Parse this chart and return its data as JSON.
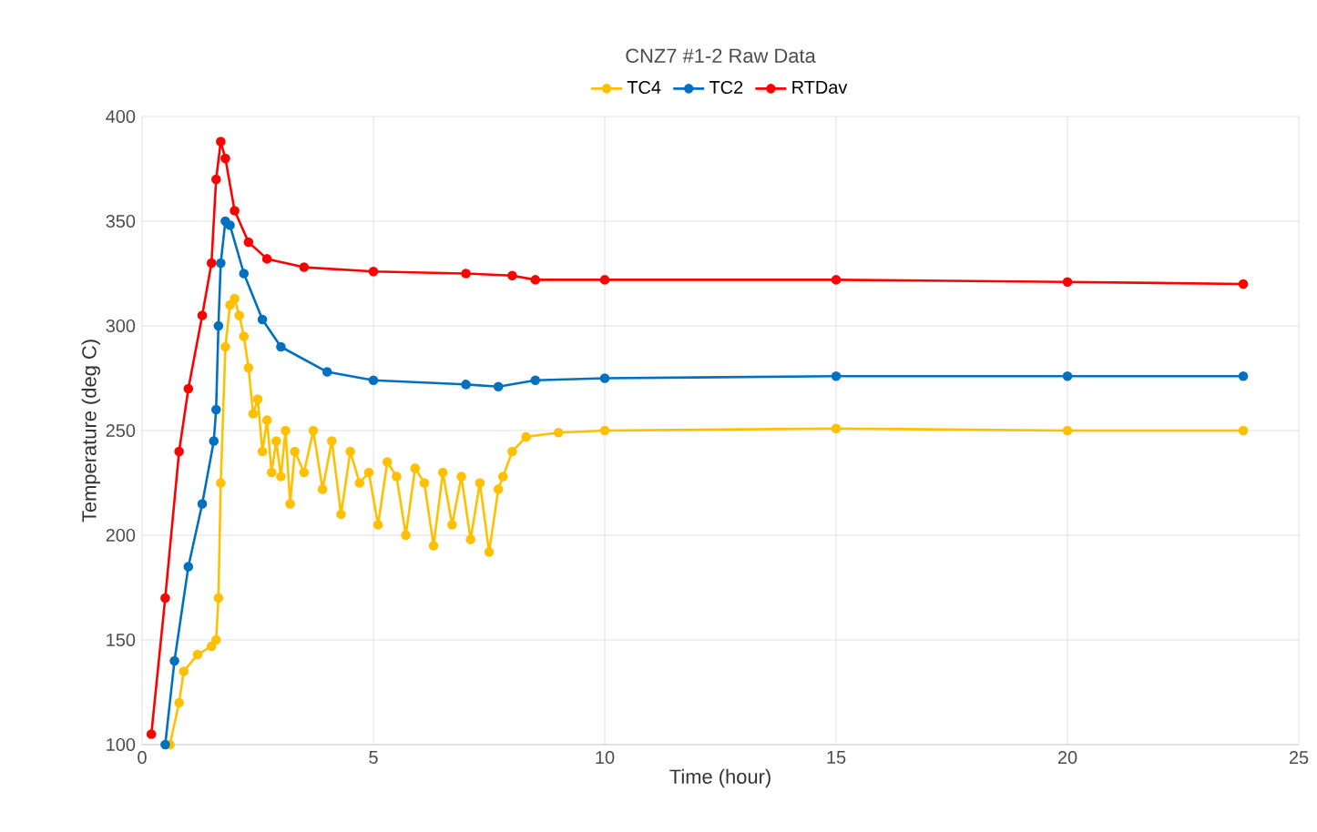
{
  "chart_data": {
    "type": "line",
    "title": "CNZ7 #1-2 Raw Data",
    "xlabel": "Time (hour)",
    "ylabel": "Temperature (deg C)",
    "xlim": [
      0,
      25
    ],
    "ylim": [
      100,
      400
    ],
    "xticks": [
      0,
      5,
      10,
      15,
      20,
      25
    ],
    "yticks": [
      100,
      150,
      200,
      250,
      300,
      350,
      400
    ],
    "grid": true,
    "legend": "top",
    "marker": "circle",
    "line_style": "solid",
    "series": [
      {
        "name": "TC4",
        "color": "#ffc000",
        "x": [
          0.6,
          0.8,
          0.9,
          1.2,
          1.5,
          1.6,
          1.65,
          1.7,
          1.8,
          1.9,
          2.0,
          2.1,
          2.2,
          2.3,
          2.4,
          2.5,
          2.6,
          2.7,
          2.8,
          2.9,
          3.0,
          3.1,
          3.2,
          3.3,
          3.5,
          3.7,
          3.9,
          4.1,
          4.3,
          4.5,
          4.7,
          4.9,
          5.1,
          5.3,
          5.5,
          5.7,
          5.9,
          6.1,
          6.3,
          6.5,
          6.7,
          6.9,
          7.1,
          7.3,
          7.5,
          7.7,
          7.8,
          8.0,
          8.3,
          9,
          10,
          15,
          20,
          23.8
        ],
        "values": [
          100,
          120,
          135,
          143,
          147,
          150,
          170,
          225,
          290,
          310,
          313,
          305,
          295,
          280,
          258,
          265,
          240,
          255,
          230,
          245,
          228,
          250,
          215,
          240,
          230,
          250,
          222,
          245,
          210,
          240,
          225,
          230,
          205,
          235,
          228,
          200,
          232,
          225,
          195,
          230,
          205,
          228,
          198,
          225,
          192,
          222,
          228,
          240,
          247,
          249,
          250,
          251,
          250,
          250
        ]
      },
      {
        "name": "TC2",
        "color": "#0070c0",
        "x": [
          0.5,
          0.7,
          1.0,
          1.3,
          1.55,
          1.6,
          1.65,
          1.7,
          1.8,
          1.9,
          2.2,
          2.6,
          3,
          4,
          5,
          7,
          7.7,
          8.5,
          10,
          15,
          20,
          23.8
        ],
        "values": [
          100,
          140,
          185,
          215,
          245,
          260,
          300,
          330,
          350,
          348,
          325,
          303,
          290,
          278,
          274,
          272,
          271,
          274,
          275,
          276,
          276,
          276
        ]
      },
      {
        "name": "RTDav",
        "color": "#ff0000",
        "x": [
          0.2,
          0.5,
          0.8,
          1.0,
          1.3,
          1.5,
          1.6,
          1.7,
          1.8,
          2.0,
          2.3,
          2.7,
          3.5,
          5,
          7,
          8,
          8.5,
          10,
          15,
          20,
          23.8
        ],
        "values": [
          105,
          170,
          240,
          270,
          305,
          330,
          370,
          388,
          380,
          355,
          340,
          332,
          328,
          326,
          325,
          324,
          322,
          322,
          322,
          321,
          320
        ]
      }
    ]
  }
}
